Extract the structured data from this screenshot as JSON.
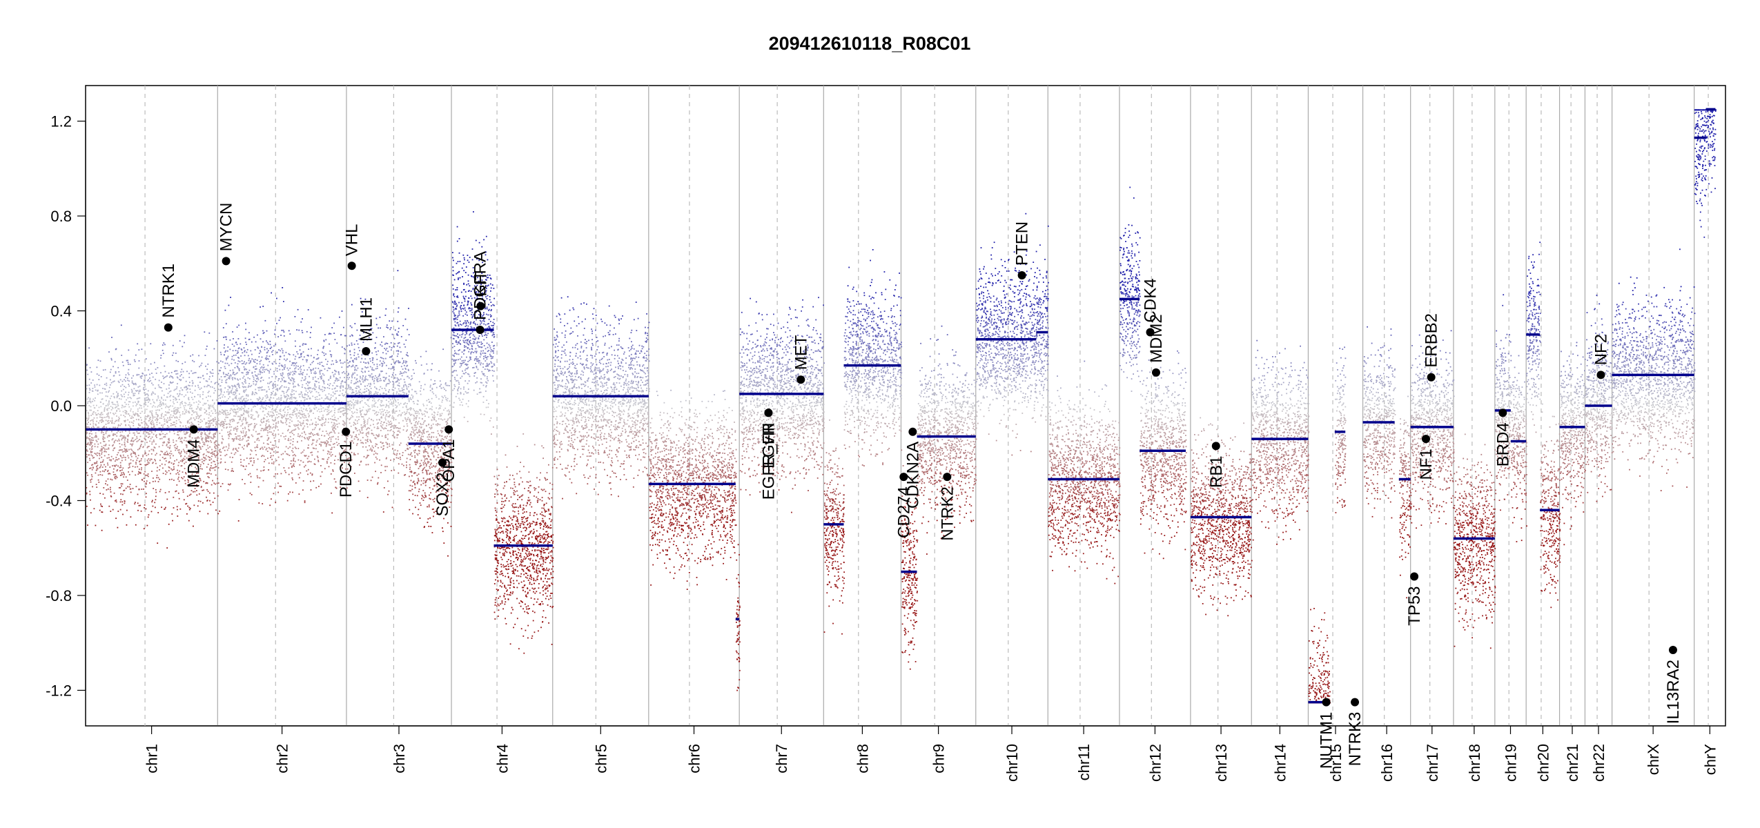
{
  "chart_data": {
    "type": "scatter",
    "title": "209412610118_R08C01",
    "ylim": [
      -1.35,
      1.35
    ],
    "yticks": [
      {
        "value": 1.2,
        "label": "1.2"
      },
      {
        "value": 0.8,
        "label": "0.8"
      },
      {
        "value": 0.4,
        "label": "0.4"
      },
      {
        "value": 0.0,
        "label": "0.0"
      },
      {
        "value": -0.4,
        "label": "-0.4"
      },
      {
        "value": -0.8,
        "label": "-0.8"
      },
      {
        "value": -1.2,
        "label": "-1.2"
      }
    ],
    "grid": false,
    "colors": {
      "gain": "#00008b",
      "loss": "#8b0000",
      "neutral": "#c0c0c0",
      "segment": "#00008b",
      "boundary": "#aaaaaa"
    },
    "chromosomes": [
      {
        "name": "chr1",
        "size": 249
      },
      {
        "name": "chr2",
        "size": 243
      },
      {
        "name": "chr3",
        "size": 198
      },
      {
        "name": "chr4",
        "size": 191
      },
      {
        "name": "chr5",
        "size": 181
      },
      {
        "name": "chr6",
        "size": 171
      },
      {
        "name": "chr7",
        "size": 159
      },
      {
        "name": "chr8",
        "size": 146
      },
      {
        "name": "chr9",
        "size": 141
      },
      {
        "name": "chr10",
        "size": 136
      },
      {
        "name": "chr11",
        "size": 135
      },
      {
        "name": "chr12",
        "size": 134
      },
      {
        "name": "chr13",
        "size": 115
      },
      {
        "name": "chr14",
        "size": 107
      },
      {
        "name": "chr15",
        "size": 103
      },
      {
        "name": "chr16",
        "size": 90
      },
      {
        "name": "chr17",
        "size": 81
      },
      {
        "name": "chr18",
        "size": 78
      },
      {
        "name": "chr19",
        "size": 59
      },
      {
        "name": "chr20",
        "size": 63
      },
      {
        "name": "chr21",
        "size": 48
      },
      {
        "name": "chr22",
        "size": 51
      },
      {
        "name": "chrX",
        "size": 155
      },
      {
        "name": "chrY",
        "size": 59
      }
    ],
    "segments": [
      {
        "chr": "chr1",
        "start": 0,
        "end": 249,
        "value": -0.1
      },
      {
        "chr": "chr2",
        "start": 0,
        "end": 243,
        "value": 0.01
      },
      {
        "chr": "chr3",
        "start": 0,
        "end": 117,
        "value": 0.04
      },
      {
        "chr": "chr3",
        "start": 117,
        "end": 198,
        "value": -0.16
      },
      {
        "chr": "chr4",
        "start": 0,
        "end": 80,
        "value": 0.32
      },
      {
        "chr": "chr4",
        "start": 80,
        "end": 191,
        "value": -0.59
      },
      {
        "chr": "chr5",
        "start": 0,
        "end": 181,
        "value": 0.04
      },
      {
        "chr": "chr6",
        "start": 0,
        "end": 164,
        "value": -0.33
      },
      {
        "chr": "chr6",
        "start": 164,
        "end": 171,
        "value": -0.9
      },
      {
        "chr": "chr7",
        "start": 0,
        "end": 159,
        "value": 0.05
      },
      {
        "chr": "chr8",
        "start": 0,
        "end": 38,
        "value": -0.5
      },
      {
        "chr": "chr8",
        "start": 38,
        "end": 146,
        "value": 0.17
      },
      {
        "chr": "chr9",
        "start": 0,
        "end": 30,
        "value": -0.7
      },
      {
        "chr": "chr9",
        "start": 30,
        "end": 141,
        "value": -0.13
      },
      {
        "chr": "chr10",
        "start": 0,
        "end": 114,
        "value": 0.28
      },
      {
        "chr": "chr10",
        "start": 114,
        "end": 136,
        "value": 0.31
      },
      {
        "chr": "chr11",
        "start": 0,
        "end": 135,
        "value": -0.31
      },
      {
        "chr": "chr12",
        "start": 0,
        "end": 38,
        "value": 0.45
      },
      {
        "chr": "chr12",
        "start": 38,
        "end": 125,
        "value": -0.19
      },
      {
        "chr": "chr13",
        "start": 0,
        "end": 115,
        "value": -0.47
      },
      {
        "chr": "chr14",
        "start": 0,
        "end": 107,
        "value": -0.14
      },
      {
        "chr": "chr15",
        "start": 0,
        "end": 40,
        "value": -1.25
      },
      {
        "chr": "chr15",
        "start": 50,
        "end": 70,
        "value": -0.11
      },
      {
        "chr": "chr16",
        "start": 0,
        "end": 60,
        "value": -0.07
      },
      {
        "chr": "chr16",
        "start": 68,
        "end": 90,
        "value": -0.31
      },
      {
        "chr": "chr17",
        "start": 0,
        "end": 81,
        "value": -0.09
      },
      {
        "chr": "chr18",
        "start": 0,
        "end": 78,
        "value": -0.56
      },
      {
        "chr": "chr19",
        "start": 0,
        "end": 30,
        "value": -0.02
      },
      {
        "chr": "chr19",
        "start": 30,
        "end": 59,
        "value": -0.15
      },
      {
        "chr": "chr20",
        "start": 0,
        "end": 26,
        "value": 0.3
      },
      {
        "chr": "chr20",
        "start": 26,
        "end": 63,
        "value": -0.44
      },
      {
        "chr": "chr21",
        "start": 0,
        "end": 48,
        "value": -0.09
      },
      {
        "chr": "chr22",
        "start": 0,
        "end": 51,
        "value": 0.0
      },
      {
        "chr": "chrX",
        "start": 0,
        "end": 155,
        "value": 0.13
      },
      {
        "chr": "chrY",
        "start": 0,
        "end": 22,
        "value": 1.13
      },
      {
        "chr": "chrY",
        "start": 22,
        "end": 40,
        "value": 1.25
      }
    ],
    "genes": [
      {
        "name": "NTRK1",
        "chr": "chr1",
        "pos": 156,
        "value": 0.33
      },
      {
        "name": "MDM4",
        "chr": "chr1",
        "pos": 204,
        "value": -0.1
      },
      {
        "name": "MYCN",
        "chr": "chr2",
        "pos": 16,
        "value": 0.61
      },
      {
        "name": "VHL",
        "chr": "chr3",
        "pos": 10,
        "value": 0.59
      },
      {
        "name": "MLH1",
        "chr": "chr3",
        "pos": 37,
        "value": 0.23
      },
      {
        "name": "PDCD1",
        "chr": "chr2",
        "pos": 242,
        "value": -0.11
      },
      {
        "name": "SOX2",
        "chr": "chr3",
        "pos": 181,
        "value": -0.24
      },
      {
        "name": "OPA1",
        "chr": "chr3",
        "pos": 193,
        "value": -0.1
      },
      {
        "name": "KIT",
        "chr": "chr4",
        "pos": 55,
        "value": 0.42
      },
      {
        "name": "PDGFRA",
        "chr": "chr4",
        "pos": 54,
        "value": 0.32
      },
      {
        "name": "EGFR",
        "chr": "chr7",
        "pos": 55,
        "value": -0.03
      },
      {
        "name": "EGFR_vIII",
        "chr": "chr7",
        "pos": 55,
        "value": -0.03
      },
      {
        "name": "MET",
        "chr": "chr7",
        "pos": 116,
        "value": 0.11
      },
      {
        "name": "CD274",
        "chr": "chr9",
        "pos": 5,
        "value": -0.3
      },
      {
        "name": "CDKN2A",
        "chr": "chr9",
        "pos": 22,
        "value": -0.11
      },
      {
        "name": "NTRK2",
        "chr": "chr9",
        "pos": 87,
        "value": -0.3
      },
      {
        "name": "PTEN",
        "chr": "chr10",
        "pos": 87,
        "value": 0.55
      },
      {
        "name": "CDK4",
        "chr": "chr12",
        "pos": 58,
        "value": 0.31
      },
      {
        "name": "MDM2",
        "chr": "chr12",
        "pos": 69,
        "value": 0.14
      },
      {
        "name": "RB1",
        "chr": "chr13",
        "pos": 48,
        "value": -0.17
      },
      {
        "name": "NUTM1",
        "chr": "chr15",
        "pos": 34,
        "value": -1.25
      },
      {
        "name": "NTRK3",
        "chr": "chr15",
        "pos": 88,
        "value": -1.25
      },
      {
        "name": "TP53",
        "chr": "chr17",
        "pos": 7,
        "value": -0.72
      },
      {
        "name": "NF1",
        "chr": "chr17",
        "pos": 29,
        "value": -0.14
      },
      {
        "name": "ERBB2",
        "chr": "chr17",
        "pos": 39,
        "value": 0.12
      },
      {
        "name": "BRD4",
        "chr": "chr19",
        "pos": 15,
        "value": -0.03
      },
      {
        "name": "NF2",
        "chr": "chr22",
        "pos": 30,
        "value": 0.13
      },
      {
        "name": "IL13RA2",
        "chr": "chrX",
        "pos": 115,
        "value": -1.03
      }
    ]
  }
}
